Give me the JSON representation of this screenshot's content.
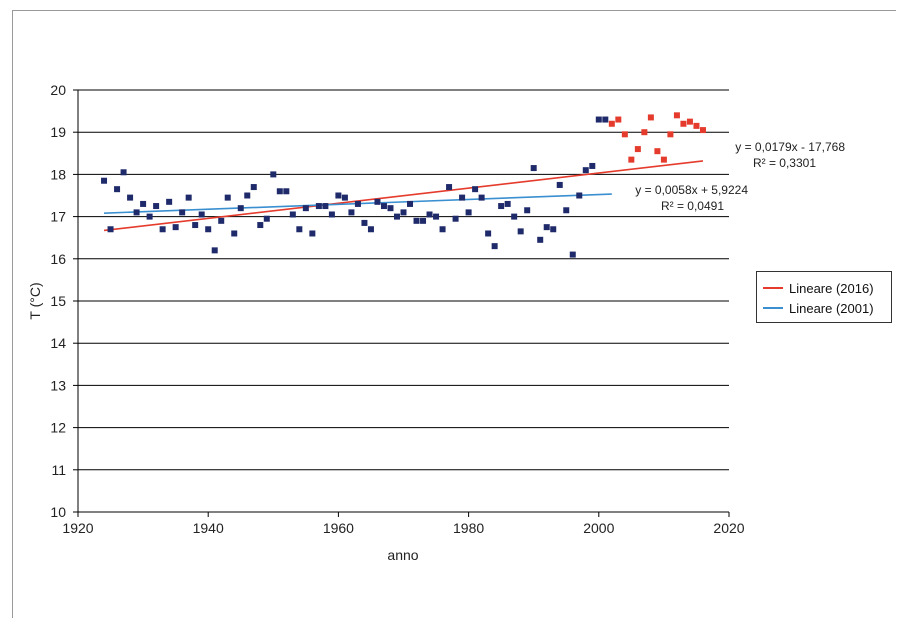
{
  "colors": {
    "series_2001": "#1f2a6b",
    "series_2016": "#e53b2c",
    "trend_2016": "#e53b2c",
    "trend_2001": "#3a8fd0"
  },
  "chart_data": {
    "type": "scatter",
    "xlabel": "anno",
    "ylabel": "T (°C)",
    "xlim": [
      1920,
      2020
    ],
    "ylim": [
      10,
      20
    ],
    "x_ticks": [
      "1920",
      "1940",
      "1960",
      "1980",
      "2000",
      "2020"
    ],
    "y_ticks": [
      "10",
      "11",
      "12",
      "13",
      "14",
      "15",
      "16",
      "17",
      "18",
      "19",
      "20"
    ],
    "grid": "horizontal",
    "legend_position": "right",
    "series": [
      {
        "marker": "square",
        "color": "#1f2a6b",
        "points": [
          [
            1924,
            17.85
          ],
          [
            1925,
            16.7
          ],
          [
            1926,
            17.65
          ],
          [
            1927,
            18.05
          ],
          [
            1928,
            17.45
          ],
          [
            1929,
            17.1
          ],
          [
            1930,
            17.3
          ],
          [
            1931,
            17.0
          ],
          [
            1932,
            17.25
          ],
          [
            1933,
            16.7
          ],
          [
            1934,
            17.35
          ],
          [
            1935,
            16.75
          ],
          [
            1936,
            17.1
          ],
          [
            1937,
            17.45
          ],
          [
            1938,
            16.8
          ],
          [
            1939,
            17.05
          ],
          [
            1940,
            16.7
          ],
          [
            1941,
            16.2
          ],
          [
            1942,
            16.9
          ],
          [
            1943,
            17.45
          ],
          [
            1944,
            16.6
          ],
          [
            1945,
            17.2
          ],
          [
            1946,
            17.5
          ],
          [
            1947,
            17.7
          ],
          [
            1948,
            16.8
          ],
          [
            1949,
            16.95
          ],
          [
            1950,
            18.0
          ],
          [
            1951,
            17.6
          ],
          [
            1952,
            17.6
          ],
          [
            1953,
            17.05
          ],
          [
            1954,
            16.7
          ],
          [
            1955,
            17.2
          ],
          [
            1956,
            16.6
          ],
          [
            1957,
            17.25
          ],
          [
            1958,
            17.25
          ],
          [
            1959,
            17.05
          ],
          [
            1960,
            17.5
          ],
          [
            1961,
            17.45
          ],
          [
            1962,
            17.1
          ],
          [
            1963,
            17.3
          ],
          [
            1964,
            16.85
          ],
          [
            1965,
            16.7
          ],
          [
            1966,
            17.35
          ],
          [
            1967,
            17.25
          ],
          [
            1968,
            17.2
          ],
          [
            1969,
            17.0
          ],
          [
            1970,
            17.1
          ],
          [
            1971,
            17.3
          ],
          [
            1972,
            16.9
          ],
          [
            1973,
            16.9
          ],
          [
            1974,
            17.05
          ],
          [
            1975,
            17.0
          ],
          [
            1976,
            16.7
          ],
          [
            1977,
            17.7
          ],
          [
            1978,
            16.95
          ],
          [
            1979,
            17.45
          ],
          [
            1980,
            17.1
          ],
          [
            1981,
            17.65
          ],
          [
            1982,
            17.45
          ],
          [
            1983,
            16.6
          ],
          [
            1984,
            16.3
          ],
          [
            1985,
            17.25
          ],
          [
            1986,
            17.3
          ],
          [
            1987,
            17.0
          ],
          [
            1988,
            16.65
          ],
          [
            1989,
            17.15
          ],
          [
            1990,
            18.15
          ],
          [
            1991,
            16.45
          ],
          [
            1992,
            16.75
          ],
          [
            1993,
            16.7
          ],
          [
            1994,
            17.75
          ],
          [
            1995,
            17.15
          ],
          [
            1996,
            16.1
          ],
          [
            1997,
            17.5
          ],
          [
            1998,
            18.1
          ],
          [
            1999,
            18.2
          ],
          [
            2000,
            19.3
          ],
          [
            2001,
            19.3
          ]
        ]
      },
      {
        "marker": "square",
        "color": "#e53b2c",
        "points": [
          [
            2002,
            19.2
          ],
          [
            2003,
            19.3
          ],
          [
            2004,
            18.95
          ],
          [
            2005,
            18.35
          ],
          [
            2006,
            18.6
          ],
          [
            2007,
            19.0
          ],
          [
            2008,
            19.35
          ],
          [
            2009,
            18.55
          ],
          [
            2010,
            18.35
          ],
          [
            2011,
            18.95
          ],
          [
            2012,
            19.4
          ],
          [
            2013,
            19.2
          ],
          [
            2014,
            19.25
          ],
          [
            2015,
            19.15
          ],
          [
            2016,
            19.05
          ]
        ]
      }
    ],
    "trendlines": [
      {
        "name": "Lineare (2016)",
        "color": "#e53b2c",
        "slope": 0.0179,
        "intercept": -17.768,
        "x_range": [
          1924,
          2016
        ],
        "equation": "y = 0,0179x  - 17,768",
        "r2": "R² = 0,3301"
      },
      {
        "name": "Lineare (2001)",
        "color": "#3a8fd0",
        "slope": 0.0058,
        "intercept": 5.9224,
        "x_range": [
          1924,
          2002
        ],
        "equation": "y = 0,0058x  + 5,9224",
        "r2": "R² = 0,0491"
      }
    ]
  },
  "legend": [
    {
      "label": "Lineare (2016)",
      "color": "#e53b2c"
    },
    {
      "label": "Lineare (2001)",
      "color": "#3a8fd0"
    }
  ]
}
